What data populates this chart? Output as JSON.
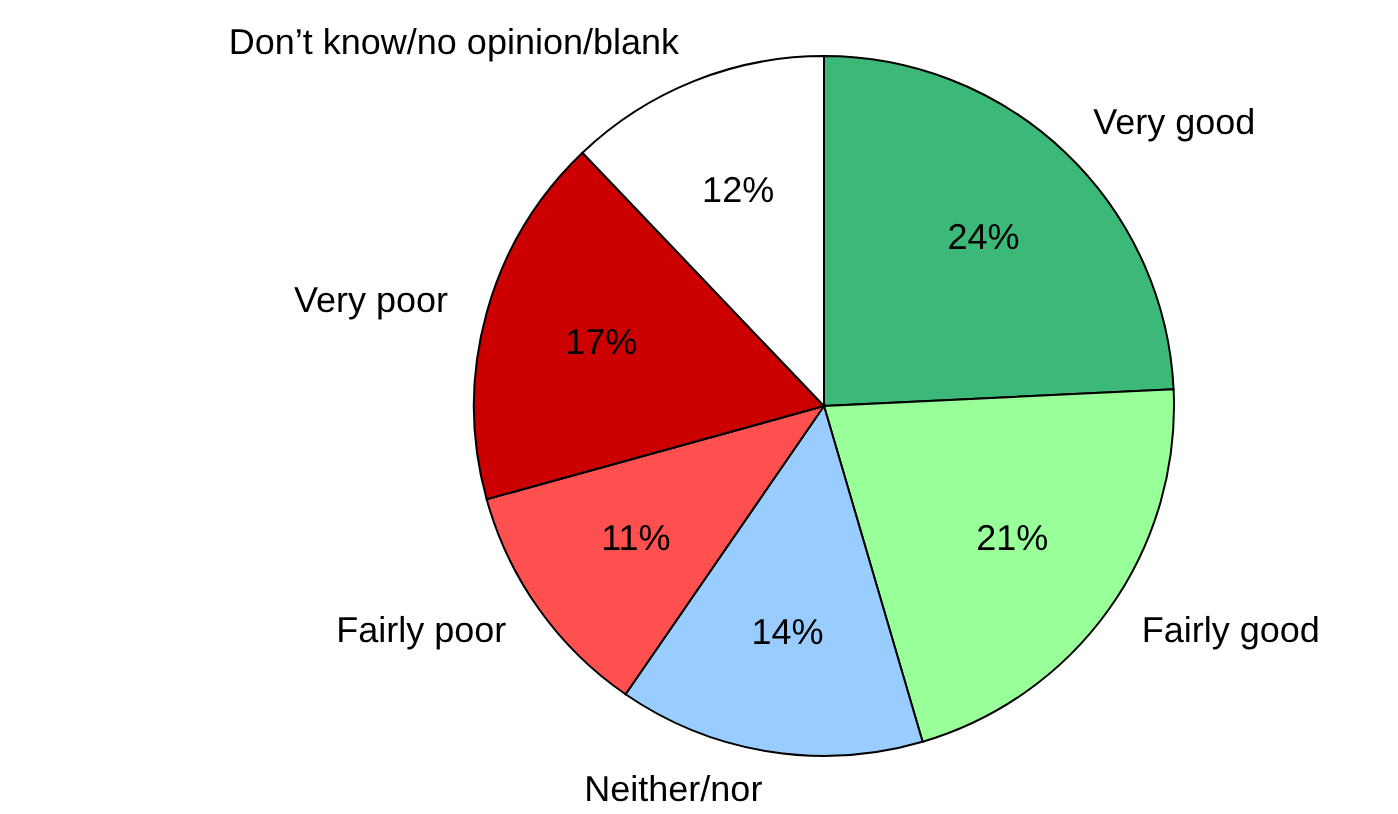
{
  "chart_data": {
    "type": "pie",
    "categories": [
      "Very good",
      "Fairly good",
      "Neither/nor",
      "Fairly poor",
      "Very poor",
      "Don’t know/no opinion/blank"
    ],
    "values": [
      24,
      21,
      14,
      11,
      17,
      12
    ],
    "colors": [
      "#3cb878",
      "#99ff99",
      "#99ccff",
      "#ff5050",
      "#cc0000",
      "#ffffff"
    ],
    "value_labels": [
      "24%",
      "21%",
      "14%",
      "11%",
      "17%",
      "12%"
    ]
  }
}
